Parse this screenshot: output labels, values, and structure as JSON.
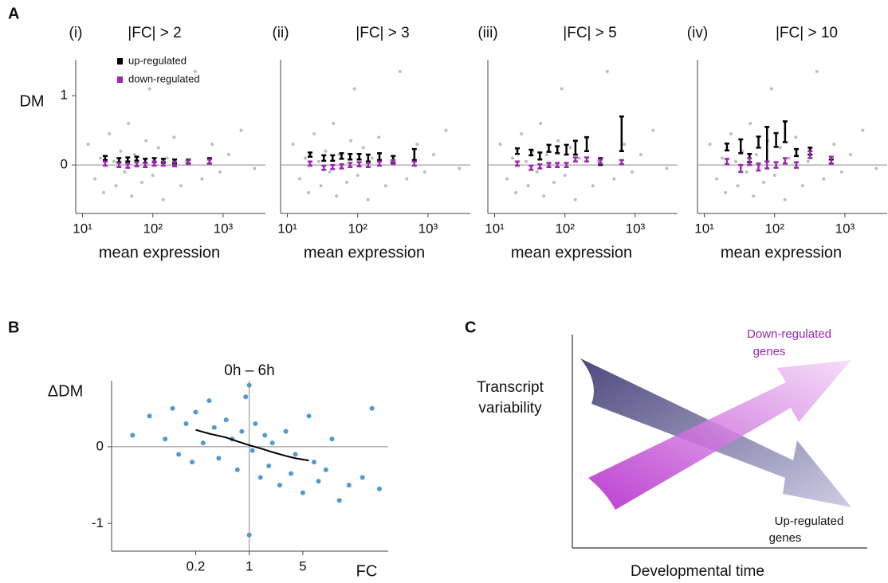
{
  "chart_data": [
    {
      "type": "scatter",
      "panel": "A",
      "subpanel": "(i)",
      "title": "|FC| > 2",
      "xlabel": "mean expression",
      "ylabel": "DM",
      "xscale": "log",
      "xlim": [
        8,
        4000
      ],
      "ylim": [
        -0.7,
        1.52
      ],
      "xticks": [
        {
          "value": 10,
          "label": "10¹"
        },
        {
          "value": 100,
          "label": "10²"
        },
        {
          "value": 1000,
          "label": "10³"
        }
      ],
      "yticks": [
        0,
        1
      ],
      "hline": 0,
      "legend": "upper left",
      "points": {
        "color": "#bdbdbd",
        "x": [
          12,
          15,
          18,
          20,
          24,
          28,
          30,
          35,
          40,
          45,
          50,
          55,
          60,
          70,
          80,
          90,
          100,
          120,
          140,
          160,
          200,
          250,
          300,
          400,
          500,
          700,
          900,
          1200,
          1800,
          2800
        ],
        "y": [
          0.3,
          -0.2,
          0.1,
          -0.4,
          0.45,
          0.05,
          -0.3,
          0.2,
          -0.1,
          0.6,
          -0.45,
          0.15,
          0.0,
          -0.25,
          0.35,
          1.1,
          -0.15,
          0.25,
          -0.5,
          0.1,
          0.4,
          -0.3,
          0.05,
          1.35,
          -0.2,
          0.3,
          -0.1,
          0.15,
          0.5,
          -0.05
        ]
      },
      "series": [
        {
          "name": "up-regulated",
          "color": "#000000",
          "x": [
            21,
            33,
            44,
            59,
            78,
            105,
            141,
            204,
            320,
            640
          ],
          "values": [
            0.1,
            0.07,
            0.08,
            0.09,
            0.06,
            0.07,
            0.06,
            0.05,
            0.05,
            0.06
          ],
          "errors": [
            0.03,
            0.03,
            0.03,
            0.03,
            0.03,
            0.03,
            0.03,
            0.03,
            0.03,
            0.04
          ]
        },
        {
          "name": "down-regulated",
          "color": "#9c27b0",
          "x": [
            21,
            33,
            44,
            59,
            78,
            105,
            141,
            204,
            320,
            640
          ],
          "values": [
            0.02,
            0.0,
            -0.01,
            0.01,
            0.0,
            0.02,
            0.02,
            0.01,
            0.04,
            0.05
          ],
          "errors": [
            0.03,
            0.03,
            0.03,
            0.03,
            0.03,
            0.03,
            0.03,
            0.03,
            0.03,
            0.03
          ]
        }
      ]
    },
    {
      "type": "scatter",
      "subpanel": "(ii)",
      "title": "|FC| > 3",
      "xlabel": "mean expression",
      "xscale": "log",
      "xlim": [
        8,
        4000
      ],
      "ylim": [
        -0.7,
        1.52
      ],
      "xticks": [
        {
          "value": 10,
          "label": "10¹"
        },
        {
          "value": 100,
          "label": "10²"
        },
        {
          "value": 1000,
          "label": "10³"
        }
      ],
      "hline": 0,
      "points": {
        "color": "#bdbdbd",
        "x": [
          12,
          15,
          18,
          20,
          24,
          28,
          30,
          35,
          40,
          45,
          50,
          55,
          60,
          70,
          80,
          90,
          100,
          120,
          140,
          160,
          200,
          250,
          300,
          400,
          500,
          700,
          900,
          1200,
          1800,
          2800
        ],
        "y": [
          0.3,
          -0.2,
          0.1,
          -0.4,
          0.45,
          0.05,
          -0.3,
          0.2,
          -0.1,
          0.6,
          -0.45,
          0.15,
          0.0,
          -0.25,
          0.35,
          1.1,
          -0.15,
          0.25,
          -0.5,
          0.1,
          0.4,
          -0.3,
          0.05,
          1.35,
          -0.2,
          0.3,
          -0.1,
          0.15,
          0.5,
          -0.05
        ]
      },
      "series": [
        {
          "name": "up-regulated",
          "color": "#000000",
          "x": [
            21,
            33,
            44,
            59,
            78,
            105,
            141,
            204,
            320,
            640
          ],
          "values": [
            0.15,
            0.1,
            0.1,
            0.13,
            0.12,
            0.12,
            0.1,
            0.12,
            0.08,
            0.15
          ],
          "errors": [
            0.03,
            0.04,
            0.04,
            0.04,
            0.04,
            0.04,
            0.05,
            0.05,
            0.05,
            0.08
          ]
        },
        {
          "name": "down-regulated",
          "color": "#9c27b0",
          "x": [
            21,
            33,
            44,
            59,
            78,
            105,
            141,
            204,
            320,
            640
          ],
          "values": [
            0.02,
            -0.04,
            -0.03,
            -0.02,
            0.0,
            0.01,
            0.0,
            0.02,
            0.04,
            0.02
          ],
          "errors": [
            0.03,
            0.03,
            0.03,
            0.03,
            0.03,
            0.03,
            0.03,
            0.03,
            0.03,
            0.03
          ]
        }
      ]
    },
    {
      "type": "scatter",
      "subpanel": "(iii)",
      "title": "|FC| > 5",
      "xlabel": "mean expression",
      "xscale": "log",
      "xlim": [
        8,
        4000
      ],
      "ylim": [
        -0.7,
        1.52
      ],
      "xticks": [
        {
          "value": 10,
          "label": "10¹"
        },
        {
          "value": 100,
          "label": "10²"
        },
        {
          "value": 1000,
          "label": "10³"
        }
      ],
      "hline": 0,
      "points": {
        "color": "#bdbdbd",
        "x": [
          12,
          15,
          18,
          20,
          24,
          28,
          30,
          35,
          40,
          45,
          50,
          55,
          60,
          70,
          80,
          90,
          100,
          120,
          140,
          160,
          200,
          250,
          300,
          400,
          500,
          700,
          900,
          1200,
          1800,
          2800
        ],
        "y": [
          0.3,
          -0.2,
          0.1,
          -0.4,
          0.45,
          0.05,
          -0.3,
          0.2,
          -0.1,
          0.6,
          -0.45,
          0.15,
          0.0,
          -0.25,
          0.35,
          1.1,
          -0.15,
          0.25,
          -0.5,
          0.1,
          0.4,
          -0.3,
          0.05,
          1.35,
          -0.2,
          0.3,
          -0.1,
          0.15,
          0.5,
          -0.05
        ]
      },
      "series": [
        {
          "name": "up-regulated",
          "color": "#000000",
          "x": [
            21,
            33,
            44,
            59,
            78,
            105,
            141,
            204,
            320,
            640
          ],
          "values": [
            0.2,
            0.18,
            0.13,
            0.24,
            0.22,
            0.22,
            0.25,
            0.3,
            0.05,
            0.45
          ],
          "errors": [
            0.04,
            0.04,
            0.05,
            0.05,
            0.05,
            0.07,
            0.1,
            0.1,
            0.05,
            0.25
          ]
        },
        {
          "name": "down-regulated",
          "color": "#9c27b0",
          "x": [
            21,
            33,
            44,
            59,
            78,
            105,
            141,
            204,
            320,
            640
          ],
          "values": [
            0.02,
            -0.04,
            -0.02,
            0.0,
            0.0,
            0.0,
            0.08,
            0.08,
            0.05,
            0.04
          ],
          "errors": [
            0.03,
            0.03,
            0.03,
            0.03,
            0.03,
            0.03,
            0.03,
            0.03,
            0.03,
            0.03
          ]
        }
      ]
    },
    {
      "type": "scatter",
      "subpanel": "(iv)",
      "title": "|FC| > 10",
      "xlabel": "mean expression",
      "xscale": "log",
      "xlim": [
        8,
        4000
      ],
      "ylim": [
        -0.7,
        1.52
      ],
      "xticks": [
        {
          "value": 10,
          "label": "10¹"
        },
        {
          "value": 100,
          "label": "10²"
        },
        {
          "value": 1000,
          "label": "10³"
        }
      ],
      "hline": 0,
      "points": {
        "color": "#bdbdbd",
        "x": [
          12,
          15,
          18,
          20,
          24,
          28,
          30,
          35,
          40,
          45,
          50,
          55,
          60,
          70,
          80,
          90,
          100,
          120,
          140,
          160,
          200,
          250,
          300,
          400,
          500,
          700,
          900,
          1200,
          1800,
          2800
        ],
        "y": [
          0.3,
          -0.2,
          0.1,
          -0.4,
          0.45,
          0.05,
          -0.3,
          0.2,
          -0.1,
          0.6,
          -0.45,
          0.15,
          0.0,
          -0.25,
          0.35,
          1.1,
          -0.15,
          0.25,
          -0.5,
          0.1,
          0.4,
          -0.3,
          0.05,
          1.35,
          -0.2,
          0.3,
          -0.1,
          0.15,
          0.5,
          -0.05
        ]
      },
      "series": [
        {
          "name": "up-regulated",
          "color": "#000000",
          "x": [
            21,
            33,
            44,
            59,
            78,
            105,
            141,
            204,
            320,
            640
          ],
          "values": [
            0.26,
            0.27,
            0.1,
            0.33,
            0.3,
            0.36,
            0.48,
            0.18,
            0.2,
            0.05
          ],
          "errors": [
            0.05,
            0.1,
            0.06,
            0.08,
            0.25,
            0.1,
            0.15,
            0.05,
            0.05,
            0.03
          ]
        },
        {
          "name": "down-regulated",
          "color": "#9c27b0",
          "x": [
            21,
            33,
            44,
            59,
            78,
            105,
            141,
            204,
            320,
            640
          ],
          "values": [
            0.05,
            -0.05,
            0.05,
            -0.03,
            0.0,
            0.0,
            0.06,
            0.0,
            0.15,
            0.07
          ],
          "errors": [
            0.04,
            0.05,
            0.05,
            0.05,
            0.05,
            0.04,
            0.04,
            0.04,
            0.05,
            0.05
          ]
        }
      ]
    },
    {
      "type": "scatter",
      "panel": "B",
      "title": "0h – 6h",
      "xlabel": "FC",
      "ylabel": "ΔDM",
      "xscale": "log",
      "xlim": [
        0.016,
        65
      ],
      "ylim": [
        -1.36,
        0.86
      ],
      "xticks": [
        0.2,
        1,
        5
      ],
      "yticks": [
        -1,
        0
      ],
      "hline": 0,
      "vline": 1,
      "points": {
        "color": "#4f9bcf",
        "x": [
          0.03,
          0.05,
          0.08,
          0.1,
          0.12,
          0.15,
          0.18,
          0.2,
          0.25,
          0.3,
          0.35,
          0.4,
          0.5,
          0.6,
          0.7,
          0.8,
          0.9,
          1,
          1,
          1.1,
          1.2,
          1.4,
          1.6,
          1.8,
          2,
          2.5,
          3,
          3.5,
          4,
          5,
          6,
          7,
          8,
          10,
          12,
          15,
          20,
          30,
          40,
          50
        ],
        "y": [
          0.15,
          0.4,
          0.1,
          0.5,
          -0.1,
          0.3,
          -0.2,
          0.45,
          0.05,
          0.6,
          0.25,
          -0.15,
          0.35,
          0.1,
          -0.3,
          0.2,
          0.65,
          -1.15,
          0.8,
          -0.05,
          0.3,
          -0.4,
          0.15,
          -0.25,
          0.05,
          -0.5,
          0.2,
          -0.35,
          -0.1,
          -0.6,
          0.4,
          -0.2,
          -0.45,
          -0.3,
          0.1,
          -0.7,
          -0.5,
          -0.4,
          0.5,
          -0.55
        ]
      },
      "trend": {
        "color": "#000000",
        "x": [
          0.2,
          0.3,
          0.5,
          0.7,
          1,
          1.5,
          2,
          3,
          4,
          6
        ],
        "y": [
          0.22,
          0.17,
          0.12,
          0.07,
          0.02,
          -0.03,
          -0.07,
          -0.12,
          -0.15,
          -0.18
        ]
      }
    }
  ],
  "diagram": {
    "panel": "C",
    "y_label": [
      "Transcript",
      "variability"
    ],
    "x_label": "Developmental time",
    "down_label": [
      "Down-regulated",
      "genes"
    ],
    "up_label": [
      "Up-regulated",
      "genes"
    ]
  }
}
